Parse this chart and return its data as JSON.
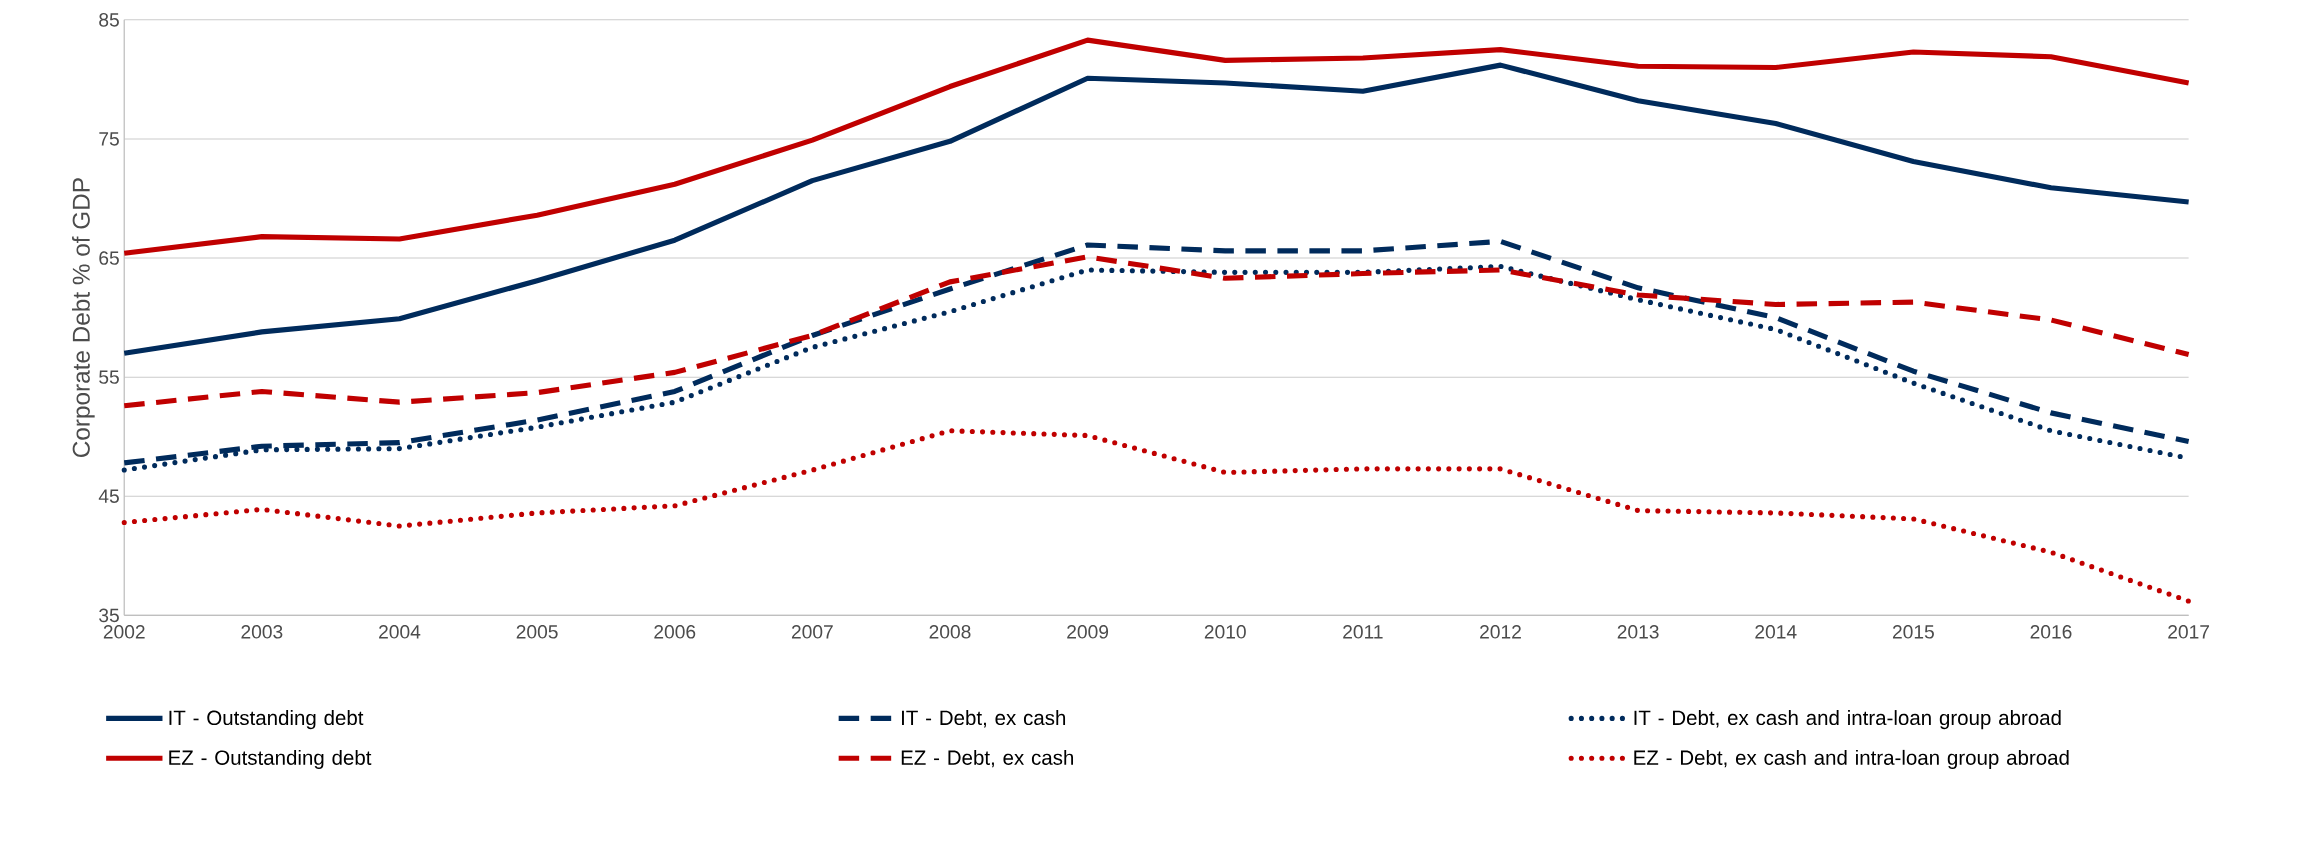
{
  "chart_data": {
    "type": "line",
    "ylabel": "Corporate Debt % of GDP",
    "x": [
      2002,
      2003,
      2004,
      2005,
      2006,
      2007,
      2008,
      2009,
      2010,
      2011,
      2012,
      2013,
      2014,
      2015,
      2016,
      2017
    ],
    "xlim": [
      2002,
      2017
    ],
    "xticks": [
      2002,
      2003,
      2004,
      2005,
      2006,
      2007,
      2008,
      2009,
      2010,
      2011,
      2012,
      2013,
      2014,
      2015,
      2016,
      2017
    ],
    "ylim": [
      35,
      85
    ],
    "yticks": [
      35,
      45,
      55,
      65,
      75,
      85
    ],
    "grid": "y",
    "legend": "bottom",
    "series": [
      {
        "name": "IT - Outstanding debt",
        "color": "#002b5c",
        "line_style": "solid",
        "values": [
          57.0,
          58.8,
          59.9,
          63.1,
          66.5,
          71.5,
          74.8,
          80.1,
          79.7,
          79.0,
          81.2,
          78.2,
          76.3,
          73.1,
          70.9,
          69.7
        ]
      },
      {
        "name": "IT - Debt, ex cash",
        "color": "#002b5c",
        "line_style": "dashed",
        "values": [
          47.8,
          49.2,
          49.5,
          51.4,
          53.8,
          58.5,
          62.4,
          66.1,
          65.6,
          65.6,
          66.4,
          62.5,
          60.0,
          55.5,
          52.0,
          49.6
        ]
      },
      {
        "name": "IT - Debt, ex cash and intra-loan group abroad",
        "color": "#002b5c",
        "line_style": "dotted",
        "values": [
          47.2,
          48.9,
          49.0,
          50.8,
          52.9,
          57.5,
          60.5,
          64.0,
          63.8,
          63.8,
          64.3,
          61.5,
          59.0,
          54.5,
          50.5,
          48.2
        ]
      },
      {
        "name": "EZ - Outstanding debt",
        "color": "#c00000",
        "line_style": "solid",
        "values": [
          65.4,
          66.8,
          66.6,
          68.6,
          71.2,
          74.9,
          79.4,
          83.3,
          81.6,
          81.8,
          82.5,
          81.1,
          81.0,
          82.3,
          81.9,
          79.7
        ]
      },
      {
        "name": "EZ - Debt, ex cash",
        "color": "#c00000",
        "line_style": "dashed",
        "values": [
          52.6,
          53.8,
          52.9,
          53.7,
          55.4,
          58.5,
          63.0,
          65.1,
          63.3,
          63.7,
          64.0,
          61.9,
          61.1,
          61.3,
          59.8,
          56.9
        ]
      },
      {
        "name": "EZ - Debt, ex cash and intra-loan group abroad",
        "color": "#c00000",
        "line_style": "dotted",
        "values": [
          42.8,
          43.9,
          42.5,
          43.6,
          44.2,
          47.2,
          50.5,
          50.1,
          47.0,
          47.3,
          47.3,
          43.8,
          43.6,
          43.1,
          40.3,
          36.2
        ]
      }
    ]
  }
}
